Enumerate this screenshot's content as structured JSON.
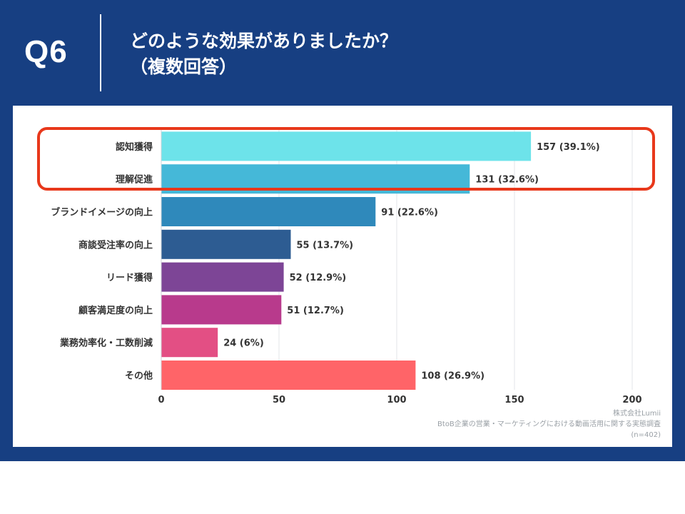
{
  "question": {
    "number": "Q6",
    "line1": "どのような効果がありましたか？",
    "line2": "（複数回答）"
  },
  "source": {
    "company": "株式会社Lumii",
    "survey": "BtoB企業の営業・マーケティングにおける動画活用に関する実態調査",
    "sample": "(n=402)"
  },
  "chart_data": {
    "type": "bar",
    "orientation": "horizontal",
    "categories": [
      "認知獲得",
      "理解促進",
      "ブランドイメージの向上",
      "商談受注率の向上",
      "リード獲得",
      "顧客満足度の向上",
      "業務効率化・工数削減",
      "その他"
    ],
    "values": [
      157,
      131,
      91,
      55,
      52,
      51,
      24,
      108
    ],
    "value_labels": [
      "157 (39.1%)",
      "131 (32.6%)",
      "91 (22.6%)",
      "55 (13.7%)",
      "52 (12.9%)",
      "51 (12.7%)",
      "24 (6%)",
      "108 (26.9%)"
    ],
    "colors": [
      "#6de3ea",
      "#45b8d8",
      "#2f89bb",
      "#2d5c92",
      "#7d4596",
      "#b83a8c",
      "#e34f84",
      "#ff6468"
    ],
    "xlim": [
      0,
      200
    ],
    "x_ticks": [
      "0",
      "50",
      "100",
      "150",
      "200"
    ],
    "grid": true,
    "highlighted_categories": [
      "認知獲得",
      "理解促進"
    ],
    "highlight_color": "#e8381b"
  },
  "colors": {
    "background": "#173f82",
    "panel": "#ffffff"
  }
}
